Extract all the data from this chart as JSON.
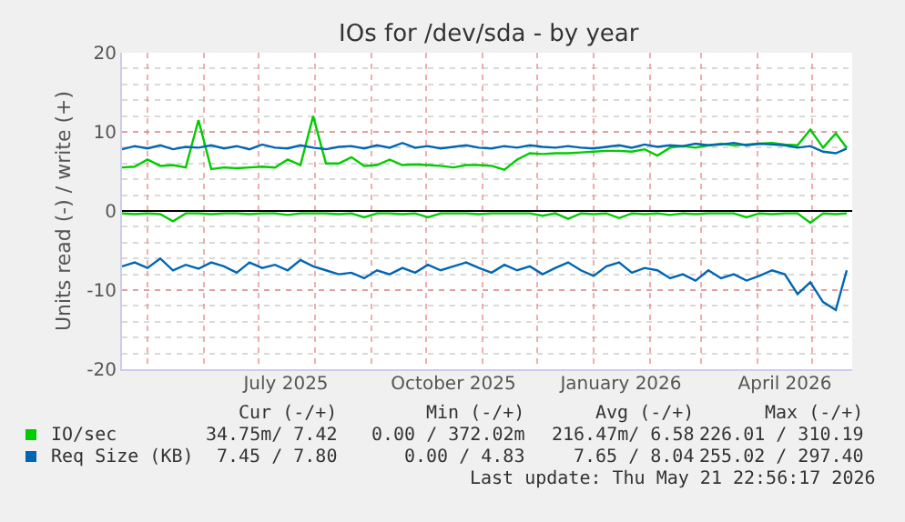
{
  "chart_data": {
    "type": "line",
    "title": "IOs for /dev/sda - by year",
    "ylabel": "Units read (-) / write (+)",
    "x": [
      "2025-04-17",
      "2025-04-24",
      "2025-05-01",
      "2025-05-08",
      "2025-05-15",
      "2025-05-22",
      "2025-05-29",
      "2025-06-05",
      "2025-06-12",
      "2025-06-19",
      "2025-06-26",
      "2025-07-03",
      "2025-07-10",
      "2025-07-17",
      "2025-07-24",
      "2025-07-31",
      "2025-08-07",
      "2025-08-14",
      "2025-08-21",
      "2025-08-28",
      "2025-09-04",
      "2025-09-11",
      "2025-09-18",
      "2025-09-25",
      "2025-10-02",
      "2025-10-09",
      "2025-10-16",
      "2025-10-23",
      "2025-10-30",
      "2025-11-06",
      "2025-11-13",
      "2025-11-20",
      "2025-11-27",
      "2025-12-04",
      "2025-12-11",
      "2025-12-18",
      "2025-12-25",
      "2026-01-01",
      "2026-01-08",
      "2026-01-15",
      "2026-01-22",
      "2026-01-29",
      "2026-02-05",
      "2026-02-12",
      "2026-02-19",
      "2026-02-26",
      "2026-03-05",
      "2026-03-12",
      "2026-03-19",
      "2026-03-26",
      "2026-04-02",
      "2026-04-09",
      "2026-04-16",
      "2026-04-23",
      "2026-04-30",
      "2026-05-07",
      "2026-05-14",
      "2026-05-20"
    ],
    "series": [
      {
        "name": "IO/sec",
        "color": "#00cc00",
        "values": [
          5.5,
          5.6,
          6.5,
          5.7,
          5.8,
          5.5,
          11.5,
          5.3,
          5.5,
          5.4,
          5.5,
          5.6,
          5.5,
          6.5,
          5.8,
          12.0,
          6.0,
          6.0,
          6.8,
          5.7,
          5.8,
          6.5,
          5.8,
          5.9,
          5.8,
          5.7,
          5.5,
          5.8,
          5.8,
          5.7,
          5.2,
          6.5,
          7.3,
          7.2,
          7.3,
          7.3,
          7.4,
          7.5,
          7.6,
          7.6,
          7.5,
          7.8,
          7.0,
          8.0,
          8.2,
          8.0,
          8.3,
          8.5,
          8.3,
          8.4,
          8.5,
          8.6,
          8.4,
          8.3,
          10.3,
          8.0,
          9.8,
          8.0
        ]
      },
      {
        "color": "#00cc00",
        "values": [
          -0.3,
          -0.4,
          -0.3,
          -0.4,
          -1.3,
          -0.3,
          -0.3,
          -0.4,
          -0.3,
          -0.3,
          -0.4,
          -0.3,
          -0.3,
          -0.5,
          -0.3,
          -0.3,
          -0.3,
          -0.4,
          -0.3,
          -0.8,
          -0.3,
          -0.3,
          -0.4,
          -0.3,
          -0.8,
          -0.3,
          -0.3,
          -0.3,
          -0.4,
          -0.3,
          -0.3,
          -0.3,
          -0.3,
          -0.6,
          -0.3,
          -1.0,
          -0.3,
          -0.4,
          -0.3,
          -0.9,
          -0.3,
          -0.4,
          -0.3,
          -0.5,
          -0.3,
          -0.4,
          -0.3,
          -0.3,
          -0.3,
          -0.8,
          -0.3,
          -0.4,
          -0.3,
          -0.3,
          -1.5,
          -0.3,
          -0.4,
          -0.3
        ]
      },
      {
        "name": "Req Size (KB)",
        "color": "#0066b3",
        "values": [
          7.8,
          8.2,
          7.9,
          8.3,
          7.8,
          8.1,
          8.0,
          8.3,
          7.9,
          8.2,
          7.8,
          8.4,
          8.0,
          7.9,
          8.3,
          8.0,
          7.8,
          8.1,
          8.2,
          7.9,
          8.3,
          8.0,
          8.6,
          8.0,
          8.2,
          7.9,
          8.1,
          8.3,
          8.0,
          7.9,
          8.2,
          8.0,
          8.3,
          8.1,
          8.0,
          8.2,
          8.0,
          7.9,
          8.1,
          8.3,
          8.0,
          8.4,
          8.1,
          8.3,
          8.2,
          8.5,
          8.3,
          8.4,
          8.6,
          8.3,
          8.5,
          8.4,
          8.3,
          8.0,
          8.2,
          7.5,
          7.3,
          7.9
        ]
      },
      {
        "color": "#0066b3",
        "values": [
          -7.0,
          -6.5,
          -7.2,
          -6.0,
          -7.5,
          -6.8,
          -7.3,
          -6.5,
          -7.0,
          -7.8,
          -6.5,
          -7.2,
          -6.8,
          -7.5,
          -6.2,
          -7.0,
          -7.5,
          -8.0,
          -7.8,
          -8.5,
          -7.5,
          -8.0,
          -7.2,
          -7.8,
          -6.8,
          -7.5,
          -7.0,
          -6.5,
          -7.2,
          -7.8,
          -6.8,
          -7.5,
          -7.0,
          -8.0,
          -7.2,
          -6.5,
          -7.5,
          -8.2,
          -7.0,
          -6.5,
          -7.8,
          -7.2,
          -7.5,
          -8.5,
          -8.0,
          -8.8,
          -7.5,
          -8.5,
          -8.0,
          -8.8,
          -8.2,
          -7.5,
          -8.0,
          -10.5,
          -9.0,
          -11.5,
          -12.5,
          -7.5
        ]
      }
    ],
    "xlim": [
      "2025-04-17",
      "2026-05-23"
    ],
    "xticks": [
      {
        "value": "2025-05-01",
        "label": null
      },
      {
        "value": "2025-06-01",
        "label": null
      },
      {
        "value": "2025-07-01",
        "label": null
      },
      {
        "value": "2025-07-16",
        "label": "July 2025"
      },
      {
        "value": "2025-08-01",
        "label": null
      },
      {
        "value": "2025-09-01",
        "label": null
      },
      {
        "value": "2025-10-01",
        "label": null
      },
      {
        "value": "2025-10-16",
        "label": "October 2025"
      },
      {
        "value": "2025-11-01",
        "label": null
      },
      {
        "value": "2025-12-01",
        "label": null
      },
      {
        "value": "2026-01-01",
        "label": null
      },
      {
        "value": "2026-01-16",
        "label": "January 2026"
      },
      {
        "value": "2026-02-01",
        "label": null
      },
      {
        "value": "2026-03-01",
        "label": null
      },
      {
        "value": "2026-04-01",
        "label": null
      },
      {
        "value": "2026-04-16",
        "label": "April 2026"
      },
      {
        "value": "2026-05-01",
        "label": null
      }
    ],
    "ylim": [
      -20,
      20
    ],
    "yticks": [
      -20,
      -10,
      0,
      10,
      20
    ],
    "grid": true,
    "legend": "bottom",
    "annotations": [
      "Cur (-/+)",
      "Min (-/+)",
      "Avg (-/+)",
      "Max (-/+)",
      "34.75m/ 7.42",
      "0.00 / 372.02m",
      "216.47m/ 6.58",
      "226.01 / 310.19",
      "7.45 / 7.80",
      "0.00 / 4.83",
      "7.65 / 8.04",
      "255.02 / 297.40",
      "Last update: Thu May 21 22:56:17 2026"
    ]
  }
}
